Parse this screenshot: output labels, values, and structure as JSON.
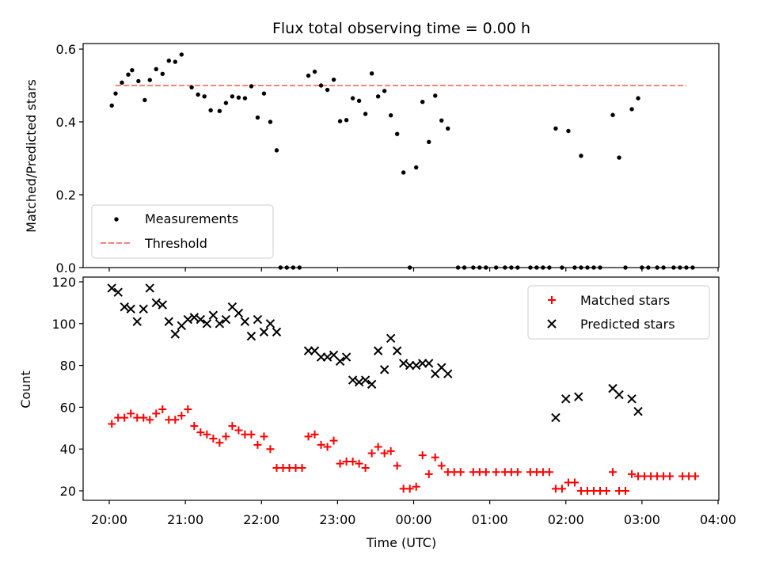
{
  "chart_data": [
    {
      "type": "scatter",
      "title": "Flux total observing time = 0.00 h",
      "ylabel": "Matched/Predicted stars",
      "xlabel": "",
      "xlim": [
        "2023-01-01T19:37",
        "2023-01-02T04:00"
      ],
      "ylim": [
        0,
        0.62
      ],
      "yticks": [
        "0.0",
        "0.2",
        "0.4",
        "0.6"
      ],
      "legend": {
        "position": "lower-left",
        "entries": [
          "Measurements",
          "Threshold"
        ]
      },
      "threshold": {
        "name": "Threshold",
        "value": 0.5,
        "x_range": [
          "20:05",
          "03:35"
        ],
        "color": "#ff8080",
        "style": "dashed"
      },
      "series": [
        {
          "name": "Measurements",
          "color": "#000000",
          "marker": "dot",
          "points": [
            [
              "20:02",
              0.445
            ],
            [
              "20:05",
              0.478
            ],
            [
              "20:10",
              0.508
            ],
            [
              "20:15",
              0.53
            ],
            [
              "20:18",
              0.542
            ],
            [
              "20:23",
              0.512
            ],
            [
              "20:28",
              0.46
            ],
            [
              "20:32",
              0.515
            ],
            [
              "20:37",
              0.545
            ],
            [
              "20:42",
              0.532
            ],
            [
              "20:47",
              0.568
            ],
            [
              "20:52",
              0.565
            ],
            [
              "20:57",
              0.585
            ],
            [
              "21:05",
              0.495
            ],
            [
              "21:10",
              0.475
            ],
            [
              "21:15",
              0.47
            ],
            [
              "21:20",
              0.432
            ],
            [
              "21:27",
              0.43
            ],
            [
              "21:32",
              0.452
            ],
            [
              "21:37",
              0.47
            ],
            [
              "21:42",
              0.467
            ],
            [
              "21:47",
              0.465
            ],
            [
              "21:52",
              0.498
            ],
            [
              "21:57",
              0.412
            ],
            [
              "22:02",
              0.478
            ],
            [
              "22:07",
              0.4
            ],
            [
              "22:12",
              0.322
            ],
            [
              "22:15",
              0.0
            ],
            [
              "22:20",
              0.0
            ],
            [
              "22:25",
              0.0
            ],
            [
              "22:30",
              0.0
            ],
            [
              "22:37",
              0.527
            ],
            [
              "22:42",
              0.538
            ],
            [
              "22:47",
              0.5
            ],
            [
              "22:52",
              0.488
            ],
            [
              "22:57",
              0.516
            ],
            [
              "23:02",
              0.402
            ],
            [
              "23:07",
              0.405
            ],
            [
              "23:12",
              0.465
            ],
            [
              "23:17",
              0.458
            ],
            [
              "23:22",
              0.422
            ],
            [
              "23:27",
              0.533
            ],
            [
              "23:32",
              0.47
            ],
            [
              "23:37",
              0.485
            ],
            [
              "23:42",
              0.418
            ],
            [
              "23:47",
              0.367
            ],
            [
              "23:52",
              0.261
            ],
            [
              "23:57",
              0.0
            ],
            [
              "00:02",
              0.275
            ],
            [
              "00:07",
              0.455
            ],
            [
              "00:12",
              0.345
            ],
            [
              "00:17",
              0.472
            ],
            [
              "00:22",
              0.404
            ],
            [
              "00:27",
              0.382
            ],
            [
              "00:35",
              0.0
            ],
            [
              "00:40",
              0.0
            ],
            [
              "00:47",
              0.0
            ],
            [
              "00:52",
              0.0
            ],
            [
              "00:57",
              0.0
            ],
            [
              "01:05",
              0.0
            ],
            [
              "01:12",
              0.0
            ],
            [
              "01:17",
              0.0
            ],
            [
              "01:22",
              0.0
            ],
            [
              "01:32",
              0.0
            ],
            [
              "01:37",
              0.0
            ],
            [
              "01:42",
              0.0
            ],
            [
              "01:47",
              0.0
            ],
            [
              "01:57",
              0.0
            ],
            [
              "02:07",
              0.0
            ],
            [
              "02:12",
              0.0
            ],
            [
              "02:17",
              0.0
            ],
            [
              "02:22",
              0.0
            ],
            [
              "02:27",
              0.0
            ],
            [
              "02:47",
              0.0
            ],
            [
              "03:00",
              0.0
            ],
            [
              "03:05",
              0.0
            ],
            [
              "03:12",
              0.0
            ],
            [
              "03:17",
              0.0
            ],
            [
              "03:25",
              0.0
            ],
            [
              "03:30",
              0.0
            ],
            [
              "03:35",
              0.0
            ],
            [
              "03:40",
              0.0
            ],
            [
              "01:52",
              0.382
            ],
            [
              "02:02",
              0.375
            ],
            [
              "02:12",
              0.307
            ],
            [
              "02:37",
              0.419
            ],
            [
              "02:42",
              0.302
            ],
            [
              "02:52",
              0.435
            ],
            [
              "02:57",
              0.465
            ]
          ]
        }
      ]
    },
    {
      "type": "scatter",
      "title": "",
      "xlabel": "Time (UTC)",
      "ylabel": "Count",
      "xlim": [
        "2023-01-01T19:37",
        "2023-01-02T04:00"
      ],
      "xticks": [
        "20:00",
        "21:00",
        "22:00",
        "23:00",
        "00:00",
        "01:00",
        "02:00",
        "03:00",
        "04:00"
      ],
      "ylim": [
        15,
        122
      ],
      "yticks": [
        "20",
        "40",
        "60",
        "80",
        "100",
        "120"
      ],
      "legend": {
        "position": "top-right",
        "entries": [
          "Matched stars",
          "Predicted stars"
        ]
      },
      "series": [
        {
          "name": "Matched stars",
          "color": "#ff0000",
          "marker": "plus",
          "points": [
            [
              "20:02",
              52
            ],
            [
              "20:07",
              55
            ],
            [
              "20:12",
              55
            ],
            [
              "20:17",
              57
            ],
            [
              "20:22",
              55
            ],
            [
              "20:27",
              55
            ],
            [
              "20:32",
              54
            ],
            [
              "20:37",
              57
            ],
            [
              "20:42",
              59
            ],
            [
              "20:47",
              54
            ],
            [
              "20:52",
              54
            ],
            [
              "20:57",
              56
            ],
            [
              "21:02",
              59
            ],
            [
              "21:07",
              51
            ],
            [
              "21:12",
              48
            ],
            [
              "21:17",
              47
            ],
            [
              "21:22",
              45
            ],
            [
              "21:27",
              43
            ],
            [
              "21:32",
              46
            ],
            [
              "21:37",
              51
            ],
            [
              "21:42",
              49
            ],
            [
              "21:47",
              47
            ],
            [
              "21:52",
              47
            ],
            [
              "21:57",
              42
            ],
            [
              "22:02",
              46
            ],
            [
              "22:07",
              40
            ],
            [
              "22:12",
              31
            ],
            [
              "22:17",
              31
            ],
            [
              "22:22",
              31
            ],
            [
              "22:27",
              31
            ],
            [
              "22:32",
              31
            ],
            [
              "22:37",
              46
            ],
            [
              "22:42",
              47
            ],
            [
              "22:47",
              42
            ],
            [
              "22:52",
              41
            ],
            [
              "22:57",
              44
            ],
            [
              "23:02",
              33
            ],
            [
              "23:07",
              34
            ],
            [
              "23:12",
              34
            ],
            [
              "23:17",
              33
            ],
            [
              "23:22",
              31
            ],
            [
              "23:27",
              38
            ],
            [
              "23:32",
              41
            ],
            [
              "23:37",
              38
            ],
            [
              "23:42",
              39
            ],
            [
              "23:47",
              32
            ],
            [
              "23:52",
              21
            ],
            [
              "23:57",
              21
            ],
            [
              "00:02",
              22
            ],
            [
              "00:07",
              37
            ],
            [
              "00:12",
              28
            ],
            [
              "00:17",
              36
            ],
            [
              "00:22",
              32
            ],
            [
              "00:27",
              29
            ],
            [
              "00:32",
              29
            ],
            [
              "00:37",
              29
            ],
            [
              "00:47",
              29
            ],
            [
              "00:52",
              29
            ],
            [
              "00:57",
              29
            ],
            [
              "01:05",
              29
            ],
            [
              "01:12",
              29
            ],
            [
              "01:17",
              29
            ],
            [
              "01:22",
              29
            ],
            [
              "01:32",
              29
            ],
            [
              "01:37",
              29
            ],
            [
              "01:42",
              29
            ],
            [
              "01:47",
              29
            ],
            [
              "01:52",
              21
            ],
            [
              "01:57",
              21
            ],
            [
              "02:02",
              24
            ],
            [
              "02:07",
              24
            ],
            [
              "02:12",
              20
            ],
            [
              "02:17",
              20
            ],
            [
              "02:22",
              20
            ],
            [
              "02:27",
              20
            ],
            [
              "02:32",
              20
            ],
            [
              "02:37",
              29
            ],
            [
              "02:42",
              20
            ],
            [
              "02:47",
              20
            ],
            [
              "02:52",
              28
            ],
            [
              "02:57",
              27
            ],
            [
              "03:02",
              27
            ],
            [
              "03:07",
              27
            ],
            [
              "03:12",
              27
            ],
            [
              "03:17",
              27
            ],
            [
              "03:22",
              27
            ],
            [
              "03:32",
              27
            ],
            [
              "03:37",
              27
            ],
            [
              "03:42",
              27
            ]
          ]
        },
        {
          "name": "Predicted stars",
          "color": "#000000",
          "marker": "x",
          "points": [
            [
              "20:02",
              117
            ],
            [
              "20:07",
              115
            ],
            [
              "20:12",
              108
            ],
            [
              "20:17",
              107
            ],
            [
              "20:22",
              101
            ],
            [
              "20:27",
              107
            ],
            [
              "20:32",
              117
            ],
            [
              "20:37",
              110
            ],
            [
              "20:42",
              109
            ],
            [
              "20:47",
              101
            ],
            [
              "20:52",
              95
            ],
            [
              "20:57",
              99
            ],
            [
              "21:02",
              102
            ],
            [
              "21:07",
              103
            ],
            [
              "21:12",
              102
            ],
            [
              "21:17",
              100
            ],
            [
              "21:22",
              104
            ],
            [
              "21:27",
              100
            ],
            [
              "21:32",
              102
            ],
            [
              "21:37",
              108
            ],
            [
              "21:42",
              105
            ],
            [
              "21:47",
              101
            ],
            [
              "21:52",
              94
            ],
            [
              "21:57",
              102
            ],
            [
              "22:02",
              96
            ],
            [
              "22:07",
              100
            ],
            [
              "22:12",
              96
            ],
            [
              "22:37",
              87
            ],
            [
              "22:42",
              87
            ],
            [
              "22:47",
              84
            ],
            [
              "22:52",
              84
            ],
            [
              "22:57",
              85
            ],
            [
              "23:02",
              82
            ],
            [
              "23:07",
              84
            ],
            [
              "23:12",
              73
            ],
            [
              "23:17",
              72
            ],
            [
              "23:22",
              73
            ],
            [
              "23:27",
              71
            ],
            [
              "23:32",
              87
            ],
            [
              "23:37",
              78
            ],
            [
              "23:42",
              93
            ],
            [
              "23:47",
              87
            ],
            [
              "23:52",
              81
            ],
            [
              "23:57",
              80
            ],
            [
              "00:02",
              80
            ],
            [
              "00:07",
              81
            ],
            [
              "00:12",
              81
            ],
            [
              "00:17",
              76
            ],
            [
              "00:22",
              79
            ],
            [
              "00:27",
              76
            ],
            [
              "01:52",
              55
            ],
            [
              "02:00",
              64
            ],
            [
              "02:10",
              65
            ],
            [
              "02:37",
              69
            ],
            [
              "02:42",
              66
            ],
            [
              "02:52",
              64
            ],
            [
              "02:57",
              58
            ]
          ]
        }
      ]
    }
  ]
}
